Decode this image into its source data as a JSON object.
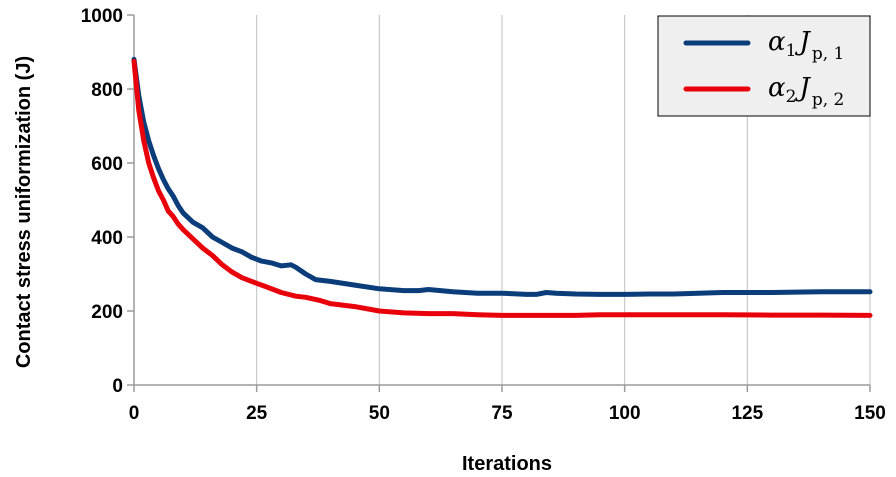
{
  "chart_data": {
    "type": "line",
    "title": "",
    "xlabel": "Iterations",
    "ylabel": "Contact stress uniformization (J)",
    "xlim": [
      0,
      150
    ],
    "ylim": [
      0,
      1000
    ],
    "xticks": [
      0,
      25,
      50,
      75,
      100,
      125,
      150
    ],
    "yticks": [
      0,
      200,
      400,
      600,
      800,
      1000
    ],
    "grid": "vertical",
    "legend_position": "top-right",
    "series": [
      {
        "name": "α1 Jp,1",
        "legend": {
          "symbol": "α",
          "sub": "1",
          "letter": "J",
          "sub2": "p, 1"
        },
        "color": "#0b3d7a",
        "x": [
          0,
          1,
          2,
          3,
          4,
          5,
          6,
          7,
          8,
          9,
          10,
          12,
          14,
          16,
          18,
          20,
          22,
          24,
          26,
          28,
          30,
          32,
          33,
          35,
          37,
          40,
          45,
          50,
          55,
          58,
          60,
          65,
          70,
          75,
          80,
          82,
          84,
          86,
          90,
          95,
          100,
          105,
          110,
          115,
          120,
          125,
          130,
          135,
          140,
          145,
          150
        ],
        "y": [
          880,
          780,
          710,
          660,
          620,
          585,
          555,
          530,
          510,
          485,
          465,
          440,
          425,
          400,
          385,
          370,
          360,
          345,
          335,
          330,
          322,
          325,
          318,
          300,
          285,
          280,
          270,
          260,
          255,
          255,
          258,
          252,
          248,
          248,
          245,
          245,
          250,
          248,
          246,
          245,
          245,
          246,
          246,
          248,
          250,
          250,
          250,
          251,
          252,
          252,
          252
        ]
      },
      {
        "name": "α2 Jp,2",
        "legend": {
          "symbol": "α",
          "sub": "2",
          "letter": "J",
          "sub2": "p, 2"
        },
        "color": "#e8000b",
        "x": [
          0,
          1,
          2,
          3,
          4,
          5,
          6,
          7,
          8,
          9,
          10,
          12,
          14,
          16,
          18,
          20,
          22,
          25,
          27,
          30,
          33,
          35,
          38,
          40,
          45,
          50,
          55,
          60,
          65,
          70,
          75,
          80,
          85,
          90,
          95,
          100,
          110,
          120,
          130,
          140,
          150
        ],
        "y": [
          875,
          740,
          660,
          600,
          560,
          525,
          500,
          470,
          455,
          435,
          420,
          395,
          370,
          350,
          325,
          305,
          290,
          275,
          265,
          250,
          240,
          237,
          228,
          220,
          212,
          200,
          195,
          193,
          193,
          190,
          188,
          188,
          188,
          188,
          190,
          190,
          190,
          190,
          189,
          189,
          188
        ]
      }
    ]
  }
}
